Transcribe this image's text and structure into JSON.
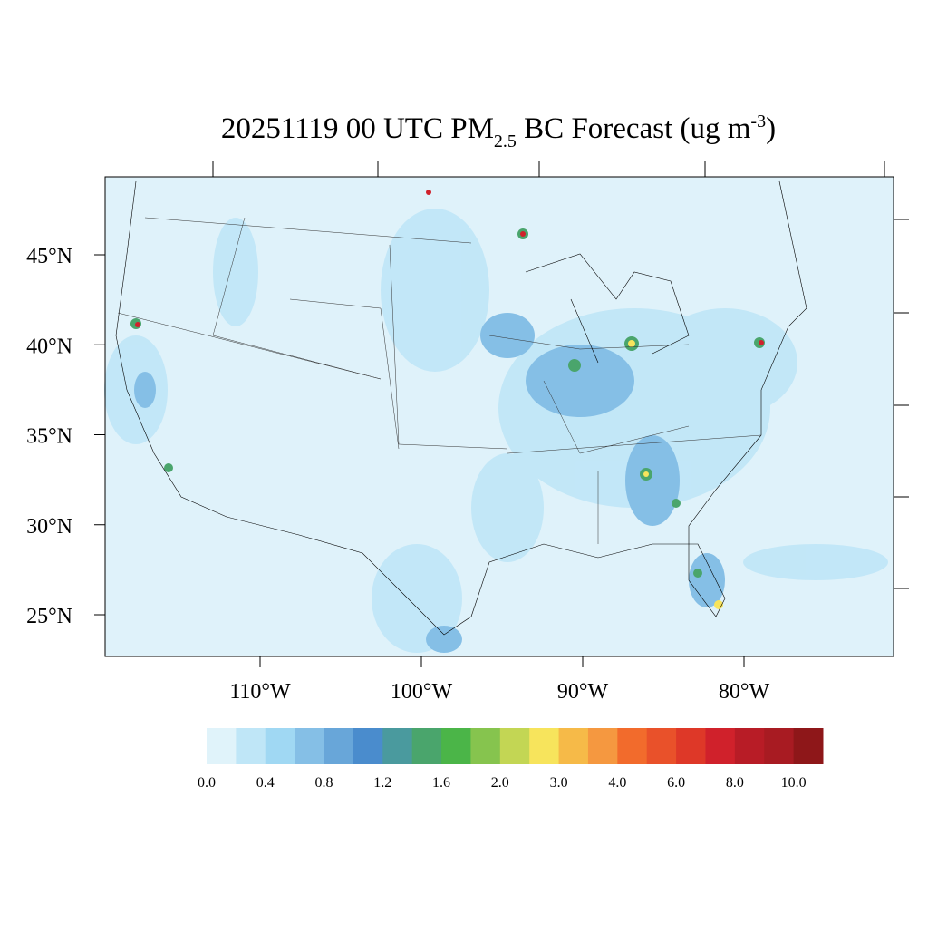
{
  "map": {
    "title": {
      "main": "20251119 00 UTC PM",
      "sub": "2.5",
      "rest": " BC Forecast (ug m",
      "sup": "-3",
      "end": ")"
    },
    "lat_ticks": [
      {
        "value": 45,
        "label": "45°N"
      },
      {
        "value": 40,
        "label": "40°N"
      },
      {
        "value": 35,
        "label": "35°N"
      },
      {
        "value": 30,
        "label": "30°N"
      },
      {
        "value": 25,
        "label": "25°N"
      }
    ],
    "lon_ticks": [
      {
        "value": -110,
        "label": "110°W"
      },
      {
        "value": -100,
        "label": "100°W"
      },
      {
        "value": -90,
        "label": "90°W"
      },
      {
        "value": -80,
        "label": "80°W"
      }
    ],
    "colorbar": {
      "colors": [
        "#e0f3fa",
        "#bfe6f7",
        "#a0d8f3",
        "#85bfe6",
        "#68a6d9",
        "#4a8ccd",
        "#4a9a9e",
        "#4aa56c",
        "#4bb548",
        "#86c44e",
        "#c3d654",
        "#f7e45c",
        "#f6ba48",
        "#f59840",
        "#f26b2c",
        "#e9512a",
        "#de3828",
        "#d0212b",
        "#b81c26",
        "#a81b22",
        "#8e1719"
      ],
      "labels": [
        {
          "value": 0,
          "label": "0.0"
        },
        0.4,
        0.8,
        1.2,
        1.6,
        {
          "value": 2,
          "label": "2.0"
        },
        {
          "value": 3,
          "label": "3.0"
        },
        {
          "value": 4,
          "label": "4.0"
        },
        {
          "value": 6,
          "label": "6.0"
        },
        {
          "value": 8,
          "label": "8.0"
        },
        {
          "value": 10,
          "label": "10.0"
        }
      ]
    }
  }
}
